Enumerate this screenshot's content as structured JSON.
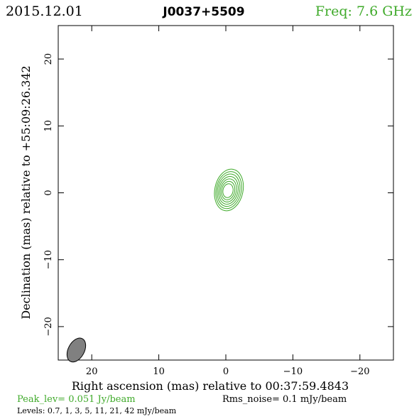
{
  "header": {
    "date": "2015.12.01",
    "source": "J0037+5509",
    "freq": "Freq:  7.6 GHz"
  },
  "footer": {
    "peak": "Peak_lev=  0.051 Jy/beam",
    "rms": "Rms_noise=   0.1 mJy/beam",
    "levels": "Levels: 0.7,    1,    3,    5,   11,   21,   42 mJy/beam"
  },
  "colors": {
    "contour": "#3faa2a",
    "axis": "#000000",
    "beam_fill": "#808080"
  },
  "chart_data": {
    "type": "contour",
    "title": "J0037+5509",
    "xlabel": "Right ascension (mas) relative to 00:37:59.4843",
    "ylabel": "Declination (mas) relative to +55:09:26.342",
    "xlim": [
      25,
      -25
    ],
    "ylim": [
      -25,
      25
    ],
    "xticks": [
      20,
      10,
      0,
      -10,
      -20
    ],
    "yticks": [
      20,
      10,
      0,
      -10,
      -20
    ],
    "xtick_labels": [
      "20",
      "10",
      "0",
      "−10",
      "−20"
    ],
    "ytick_labels": [
      "20",
      "10",
      "0",
      "−10",
      "−20"
    ],
    "levels_mJy": [
      0.7,
      1,
      3,
      5,
      11,
      21,
      42
    ],
    "peak_Jy_per_beam": 0.051,
    "rms_mJy_per_beam": 0.1,
    "source": {
      "x": -0.3,
      "y": 0.3,
      "width": 4.2,
      "height": 6.3
    },
    "beam": {
      "x": 22.3,
      "y": -23.5,
      "major": 2.4,
      "minor": 1.5,
      "pa_deg": 28
    }
  }
}
